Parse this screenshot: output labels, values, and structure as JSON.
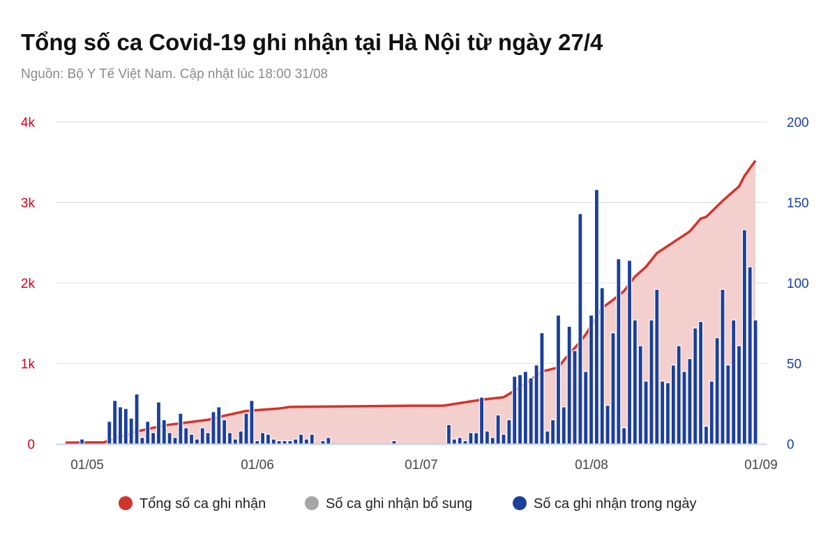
{
  "chart_data": {
    "type": "bar+area",
    "title": "Tổng số ca Covid-19 ghi nhận tại Hà Nội từ ngày 27/4",
    "subtitle": "Nguồn: Bộ Y Tế Việt Nam. Cập nhật lúc 18:00 31/08",
    "x_ticks": [
      "01/05",
      "01/06",
      "01/07",
      "01/08",
      "01/09"
    ],
    "y_left": {
      "ticks": [
        "0",
        "1k",
        "2k",
        "3k",
        "4k"
      ],
      "range": [
        0,
        4000
      ],
      "color": "#d0021b"
    },
    "y_right": {
      "ticks": [
        "0",
        "50",
        "100",
        "150",
        "200"
      ],
      "range": [
        0,
        200
      ],
      "color": "#1a3f9c"
    },
    "grid": true,
    "legend_position": "bottom",
    "series": [
      {
        "name": "Tổng số ca ghi nhận",
        "type": "area",
        "axis": "left",
        "color": "#d0342c",
        "fill": "#f3cfcd",
        "points": [
          [
            "27/04",
            15
          ],
          [
            "04/05",
            20
          ],
          [
            "10/05",
            155
          ],
          [
            "15/05",
            230
          ],
          [
            "23/05",
            300
          ],
          [
            "26/05",
            350
          ],
          [
            "30/05",
            410
          ],
          [
            "05/06",
            440
          ],
          [
            "07/06",
            460
          ],
          [
            "30/06",
            475
          ],
          [
            "05/07",
            475
          ],
          [
            "12/07",
            550
          ],
          [
            "16/07",
            580
          ],
          [
            "17/07",
            620
          ],
          [
            "20/07",
            750
          ],
          [
            "23/07",
            900
          ],
          [
            "26/07",
            950
          ],
          [
            "27/07",
            1040
          ],
          [
            "30/07",
            1270
          ],
          [
            "31/07",
            1360
          ],
          [
            "03/08",
            1690
          ],
          [
            "05/08",
            1790
          ],
          [
            "07/08",
            1900
          ],
          [
            "09/08",
            2080
          ],
          [
            "11/08",
            2200
          ],
          [
            "13/08",
            2370
          ],
          [
            "17/08",
            2550
          ],
          [
            "19/08",
            2640
          ],
          [
            "21/08",
            2800
          ],
          [
            "22/08",
            2820
          ],
          [
            "25/08",
            3020
          ],
          [
            "28/08",
            3200
          ],
          [
            "29/08",
            3330
          ],
          [
            "31/08",
            3520
          ]
        ]
      },
      {
        "name": "Số ca ghi nhận bổ sung",
        "type": "bar",
        "axis": "right",
        "color": "#a6a6a6",
        "points": []
      },
      {
        "name": "Số ca ghi nhận trong ngày",
        "type": "bar",
        "axis": "right",
        "color": "#1a3f9c",
        "points": [
          [
            "30/04",
            3
          ],
          [
            "05/05",
            14
          ],
          [
            "06/05",
            27
          ],
          [
            "07/05",
            23
          ],
          [
            "08/05",
            22
          ],
          [
            "09/05",
            16
          ],
          [
            "10/05",
            31
          ],
          [
            "11/05",
            4
          ],
          [
            "12/05",
            14
          ],
          [
            "13/05",
            7
          ],
          [
            "14/05",
            26
          ],
          [
            "15/05",
            15
          ],
          [
            "16/05",
            7
          ],
          [
            "17/05",
            4
          ],
          [
            "18/05",
            19
          ],
          [
            "19/05",
            10
          ],
          [
            "20/05",
            6
          ],
          [
            "21/05",
            3
          ],
          [
            "22/05",
            10
          ],
          [
            "23/05",
            7
          ],
          [
            "24/05",
            20
          ],
          [
            "25/05",
            23
          ],
          [
            "26/05",
            15
          ],
          [
            "27/05",
            7
          ],
          [
            "28/05",
            3
          ],
          [
            "29/05",
            8
          ],
          [
            "30/05",
            19
          ],
          [
            "31/05",
            27
          ],
          [
            "01/06",
            2
          ],
          [
            "02/06",
            7
          ],
          [
            "03/06",
            6
          ],
          [
            "04/06",
            3
          ],
          [
            "05/06",
            2
          ],
          [
            "06/06",
            2
          ],
          [
            "07/06",
            2
          ],
          [
            "08/06",
            3
          ],
          [
            "09/06",
            6
          ],
          [
            "10/06",
            3
          ],
          [
            "11/06",
            6
          ],
          [
            "13/06",
            2
          ],
          [
            "14/06",
            4
          ],
          [
            "26/06",
            2
          ],
          [
            "06/07",
            12
          ],
          [
            "07/07",
            3
          ],
          [
            "08/07",
            4
          ],
          [
            "09/07",
            2
          ],
          [
            "10/07",
            7
          ],
          [
            "11/07",
            7
          ],
          [
            "12/07",
            29
          ],
          [
            "13/07",
            8
          ],
          [
            "14/07",
            4
          ],
          [
            "15/07",
            18
          ],
          [
            "16/07",
            6
          ],
          [
            "17/07",
            15
          ],
          [
            "18/07",
            42
          ],
          [
            "19/07",
            43
          ],
          [
            "20/07",
            45
          ],
          [
            "21/07",
            41
          ],
          [
            "22/07",
            49
          ],
          [
            "23/07",
            69
          ],
          [
            "24/07",
            8
          ],
          [
            "25/07",
            15
          ],
          [
            "26/07",
            80
          ],
          [
            "27/07",
            23
          ],
          [
            "28/07",
            73
          ],
          [
            "29/07",
            58
          ],
          [
            "30/07",
            143
          ],
          [
            "31/07",
            45
          ],
          [
            "01/08",
            80
          ],
          [
            "02/08",
            158
          ],
          [
            "03/08",
            97
          ],
          [
            "04/08",
            24
          ],
          [
            "05/08",
            69
          ],
          [
            "06/08",
            115
          ],
          [
            "07/08",
            10
          ],
          [
            "08/08",
            114
          ],
          [
            "09/08",
            77
          ],
          [
            "10/08",
            61
          ],
          [
            "11/08",
            39
          ],
          [
            "12/08",
            77
          ],
          [
            "13/08",
            96
          ],
          [
            "14/08",
            39
          ],
          [
            "15/08",
            38
          ],
          [
            "16/08",
            49
          ],
          [
            "17/08",
            61
          ],
          [
            "18/08",
            45
          ],
          [
            "19/08",
            53
          ],
          [
            "20/08",
            72
          ],
          [
            "21/08",
            76
          ],
          [
            "22/08",
            11
          ],
          [
            "23/08",
            39
          ],
          [
            "24/08",
            66
          ],
          [
            "25/08",
            96
          ],
          [
            "26/08",
            49
          ],
          [
            "27/08",
            77
          ],
          [
            "28/08",
            61
          ],
          [
            "29/08",
            133
          ],
          [
            "30/08",
            110
          ],
          [
            "31/08",
            77
          ]
        ]
      }
    ]
  }
}
